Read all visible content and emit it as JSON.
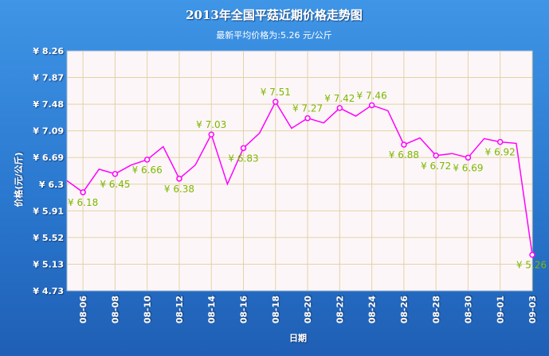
{
  "header": {
    "title": "2013年全国平菇近期价格走势图",
    "subtitle": "最新平均价格为:5.26 元/公斤"
  },
  "chart_data": {
    "type": "line",
    "title": "2013年全国平菇近期价格走势图",
    "subtitle": "最新平均价格为:5.26 元/公斤",
    "xlabel": "日期",
    "ylabel": "价格(元/公斤)",
    "ylim": [
      4.73,
      8.26
    ],
    "yticks": [
      "8.26",
      "7.87",
      "7.48",
      "7.09",
      "6.69",
      "6.3",
      "5.91",
      "5.52",
      "5.13",
      "4.73"
    ],
    "ytick_prefix": "¥",
    "xticks": [
      "08-06",
      "08-08",
      "08-10",
      "08-12",
      "08-14",
      "08-16",
      "08-18",
      "08-20",
      "08-22",
      "08-24",
      "08-26",
      "08-28",
      "08-30",
      "09-01",
      "09-03"
    ],
    "grid": true,
    "series": [
      {
        "values": [
          6.35,
          6.18,
          6.52,
          6.45,
          6.58,
          6.66,
          6.85,
          6.38,
          6.58,
          7.03,
          6.3,
          6.83,
          7.05,
          7.51,
          7.12,
          7.27,
          7.2,
          7.42,
          7.3,
          7.46,
          7.38,
          6.88,
          6.98,
          6.72,
          6.75,
          6.69,
          6.97,
          6.92,
          6.9,
          5.26
        ],
        "labels": [
          "",
          "¥ 6.18",
          "",
          "¥ 6.45",
          "",
          "¥ 6.66",
          "",
          "¥ 6.38",
          "",
          "¥ 7.03",
          "",
          "¥ 6.83",
          "",
          "¥ 7.51",
          "",
          "¥ 7.27",
          "",
          "¥ 7.42",
          "",
          "¥ 7.46",
          "",
          "¥ 6.88",
          "",
          "¥ 6.72",
          "",
          "¥ 6.69",
          "",
          "¥ 6.92",
          "",
          "¥ 5.26"
        ]
      }
    ],
    "colors": {
      "line": "#ff00ff",
      "label": "#7cb800",
      "plot_bg": "#fdf6f8",
      "grid": "#e0d3a6"
    }
  }
}
